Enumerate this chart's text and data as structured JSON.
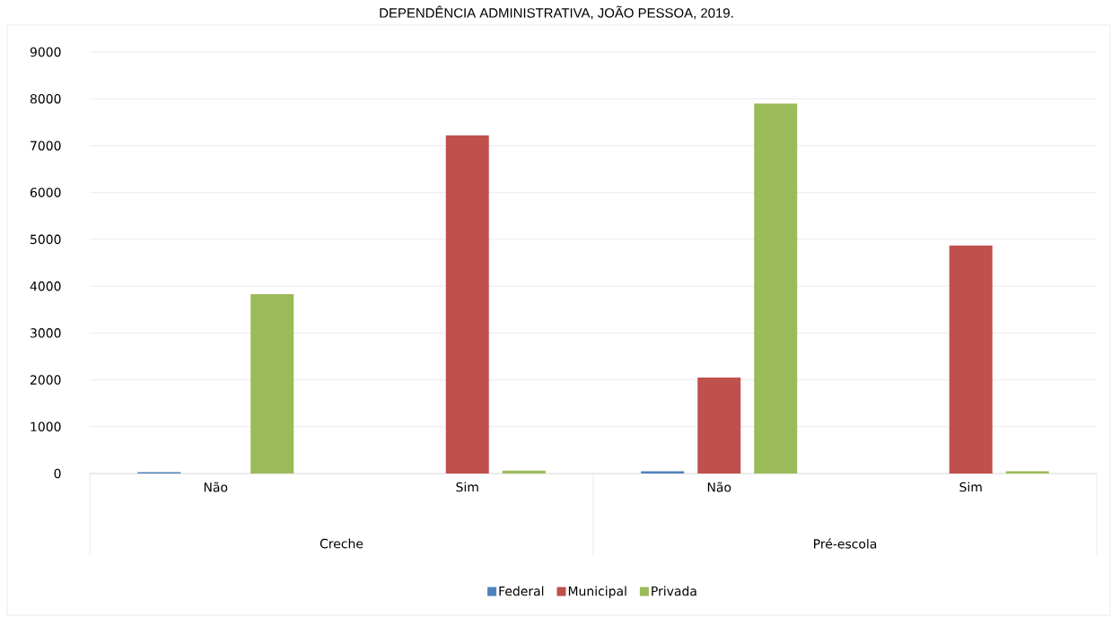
{
  "chart_data": {
    "type": "bar",
    "title": "DEPENDÊNCIA ADMINISTRATIVA, JOÃO PESSOA, 2019.",
    "categories": [
      "Não",
      "Sim",
      "Não",
      "Sim"
    ],
    "annotations": [
      "Creche",
      "Pré-escola"
    ],
    "series": [
      {
        "name": "Federal",
        "color": "#4f81bd",
        "values": [
          30,
          null,
          50,
          null
        ]
      },
      {
        "name": "Municipal",
        "color": "#c0504d",
        "values": [
          null,
          7220,
          2050,
          4870
        ]
      },
      {
        "name": "Privada",
        "color": "#9bbb59",
        "values": [
          3830,
          60,
          7900,
          50
        ]
      }
    ],
    "ylim": [
      0,
      9000
    ],
    "yticks": [
      0,
      1000,
      2000,
      3000,
      4000,
      5000,
      6000,
      7000,
      8000,
      9000
    ],
    "grid": "y",
    "legend": "bottom"
  }
}
